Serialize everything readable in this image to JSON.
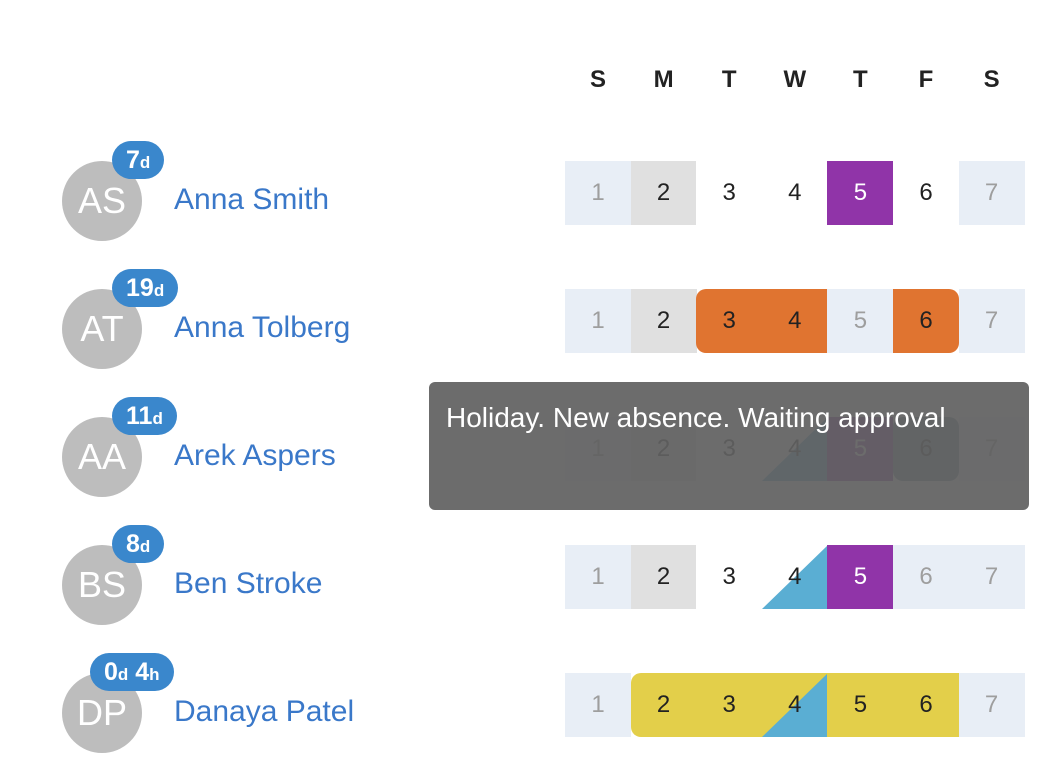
{
  "days": [
    "S",
    "M",
    "T",
    "W",
    "T",
    "F",
    "S"
  ],
  "colors": {
    "accent": "#3a87cc",
    "orange": "#e07430",
    "purple": "#9034a8",
    "yellow": "#e3cf4a",
    "blue": "#5aaed3",
    "weekend": "#e8eef6",
    "holiday": "#e0e0e0"
  },
  "people": [
    {
      "initials": "AS",
      "name": "Anna Smith",
      "badge": {
        "days": "7",
        "d": "d"
      },
      "cells": [
        [
          "1",
          "weekend"
        ],
        [
          "2",
          "holiday"
        ],
        [
          "3",
          "normal"
        ],
        [
          "4",
          "normal"
        ],
        [
          "5",
          "purple"
        ],
        [
          "6",
          "normal"
        ],
        [
          "7",
          "weekend"
        ]
      ]
    },
    {
      "initials": "AT",
      "name": "Anna Tolberg",
      "badge": {
        "days": "19",
        "d": "d"
      },
      "cells": [
        [
          "1",
          "weekend"
        ],
        [
          "2",
          "holiday"
        ],
        [
          "3",
          "orange-start"
        ],
        [
          "4",
          "orange"
        ],
        [
          "5",
          "weekend"
        ],
        [
          "6",
          "orange-end"
        ],
        [
          "7",
          "weekend"
        ]
      ]
    },
    {
      "initials": "AA",
      "name": "Arek Aspers",
      "badge": {
        "days": "11",
        "d": "d"
      },
      "cells": [
        [
          "1",
          "weekend"
        ],
        [
          "2",
          "holiday"
        ],
        [
          "3",
          "normal"
        ],
        [
          "4",
          "blue-half"
        ],
        [
          "5",
          "purple"
        ],
        [
          "6",
          "pending"
        ],
        [
          "7",
          "weekend"
        ]
      ]
    },
    {
      "initials": "BS",
      "name": "Ben Stroke",
      "badge": {
        "days": "8",
        "d": "d"
      },
      "cells": [
        [
          "1",
          "weekend"
        ],
        [
          "2",
          "holiday"
        ],
        [
          "3",
          "normal"
        ],
        [
          "4",
          "blue-half"
        ],
        [
          "5",
          "purple"
        ],
        [
          "6",
          "weekend"
        ],
        [
          "7",
          "weekend"
        ]
      ]
    },
    {
      "initials": "DP",
      "name": "Danaya Patel",
      "badge": {
        "days": "0",
        "d": "d",
        "hours": "4",
        "h": "h"
      },
      "cells": [
        [
          "1",
          "weekend"
        ],
        [
          "2",
          "yellow-start"
        ],
        [
          "3",
          "yellow"
        ],
        [
          "4",
          "yellow-blue-half"
        ],
        [
          "5",
          "yellow"
        ],
        [
          "6",
          "yellow"
        ],
        [
          "7",
          "weekend"
        ]
      ]
    }
  ],
  "tooltip": {
    "text": "Holiday. New absence. Waiting approval"
  }
}
